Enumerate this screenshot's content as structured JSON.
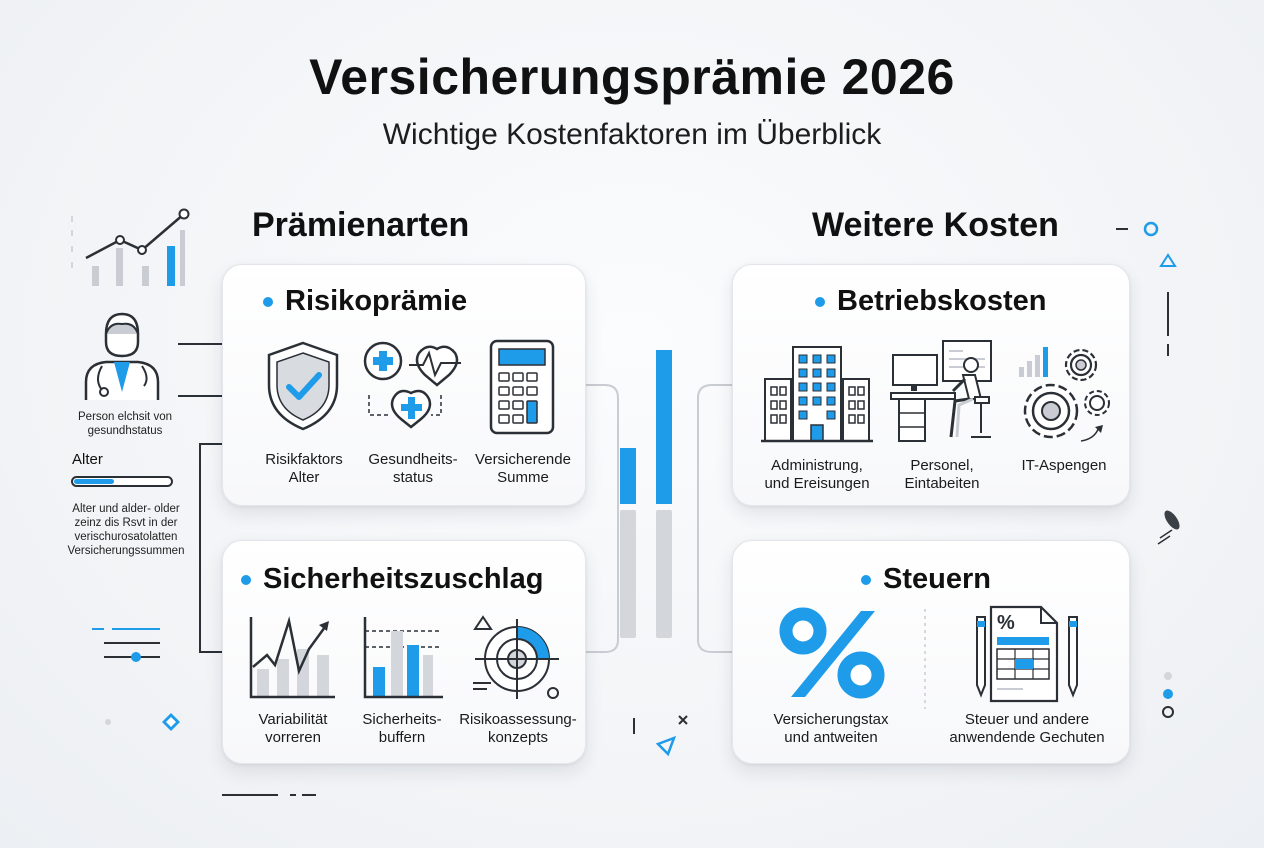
{
  "header": {
    "title": "Versicherungsprämie 2026",
    "subtitle": "Wichtige Kostenfaktoren im Überblick"
  },
  "sections": {
    "left_heading": "Prämienarten",
    "right_heading": "Weitere Kosten"
  },
  "cards": {
    "risikopraemie": {
      "title": "Risikoprämie",
      "items": [
        "Risikfaktors\nAlter",
        "Gesundheits-\nstatus",
        "Versicherende\nSumme"
      ]
    },
    "sicherheitszuschlag": {
      "title": "Sicherheitszuschlag",
      "items": [
        "Variabilität\nvorreren",
        "Sicherheits-\nbuffern",
        "Risikoassessung-\nkonzepts"
      ]
    },
    "betriebskosten": {
      "title": "Betriebskosten",
      "items": [
        "Administrung,\nund Ereisungen",
        "Personel,\nEintabeiten",
        "IT-Aspengen"
      ]
    },
    "steuern": {
      "title": "Steuern",
      "items": [
        "Versicherungstax\nund antweiten",
        "Steuer und andere\nanwendende Gechuten"
      ]
    }
  },
  "sidebar": {
    "person_caption": "Person elchsit von\ngesundhstatus",
    "age_label": "Alter",
    "age_caption": "Alter und alder- older\nzeinz dis Rsvt in der\nverischurosatolatten\nVersicherungssummen"
  },
  "colors": {
    "accent": "#1e9be9",
    "dark": "#2b2f36",
    "grey": "#c9ccd2"
  },
  "icons": [
    "line-chart-icon",
    "doctor-icon",
    "shield-check-icon",
    "health-icon",
    "calculator-icon",
    "volatility-chart-icon",
    "buffer-bars-icon",
    "target-icon",
    "office-building-icon",
    "workstation-icon",
    "gears-icon",
    "percent-icon",
    "tax-document-icon"
  ]
}
